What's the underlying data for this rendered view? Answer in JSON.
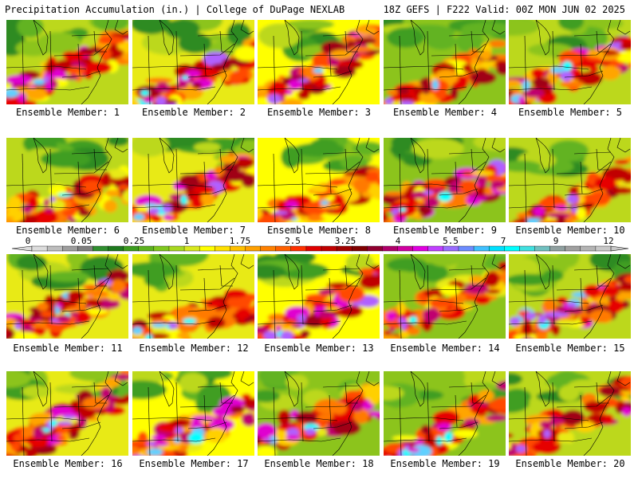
{
  "header": {
    "left": "Precipitation Accumulation (in.) | College of DuPage NEXLAB",
    "right": "18Z GEFS | F222 Valid: 00Z MON JUN 02 2025"
  },
  "colorbar": {
    "labels": [
      "0",
      "0.05",
      "0.25",
      "1",
      "1.75",
      "2.5",
      "3.25",
      "4",
      "5.5",
      "7",
      "9",
      "12"
    ],
    "colors": [
      "#dcdcdc",
      "#bdbdbd",
      "#9e9e9e",
      "#7f7f7f",
      "#2f8f2f",
      "#1e7a1e",
      "#3c9c1e",
      "#5cb21e",
      "#7fc81e",
      "#a8d820",
      "#d8e81e",
      "#ffff00",
      "#ffe000",
      "#ffc000",
      "#ffa000",
      "#ff8000",
      "#ff6000",
      "#ff3000",
      "#e00000",
      "#c00000",
      "#a00000",
      "#800000",
      "#900030",
      "#b0006a",
      "#d000a0",
      "#e000e0",
      "#c040ff",
      "#9a6cff",
      "#6c8cff",
      "#40c0ff",
      "#00e0ff",
      "#00ffff",
      "#40e0e0",
      "#70c0c0",
      "#90a0a0",
      "#a0a0a0",
      "#b4b4b4",
      "#c8c8c8"
    ]
  },
  "panels": [
    {
      "label": "Ensemble Member: 1",
      "member": 1
    },
    {
      "label": "Ensemble Member: 2",
      "member": 2
    },
    {
      "label": "Ensemble Member: 3",
      "member": 3
    },
    {
      "label": "Ensemble Member: 4",
      "member": 4
    },
    {
      "label": "Ensemble Member: 5",
      "member": 5
    },
    {
      "label": "Ensemble Member: 6",
      "member": 6
    },
    {
      "label": "Ensemble Member: 7",
      "member": 7
    },
    {
      "label": "Ensemble Member: 8",
      "member": 8
    },
    {
      "label": "Ensemble Member: 9",
      "member": 9
    },
    {
      "label": "Ensemble Member: 10",
      "member": 10
    },
    {
      "label": "Ensemble Member: 11",
      "member": 11
    },
    {
      "label": "Ensemble Member: 12",
      "member": 12
    },
    {
      "label": "Ensemble Member: 13",
      "member": 13
    },
    {
      "label": "Ensemble Member: 14",
      "member": 14
    },
    {
      "label": "Ensemble Member: 15",
      "member": 15
    },
    {
      "label": "Ensemble Member: 16",
      "member": 16
    },
    {
      "label": "Ensemble Member: 17",
      "member": 17
    },
    {
      "label": "Ensemble Member: 18",
      "member": 18
    },
    {
      "label": "Ensemble Member: 19",
      "member": 19
    },
    {
      "label": "Ensemble Member: 20",
      "member": 20
    }
  ]
}
